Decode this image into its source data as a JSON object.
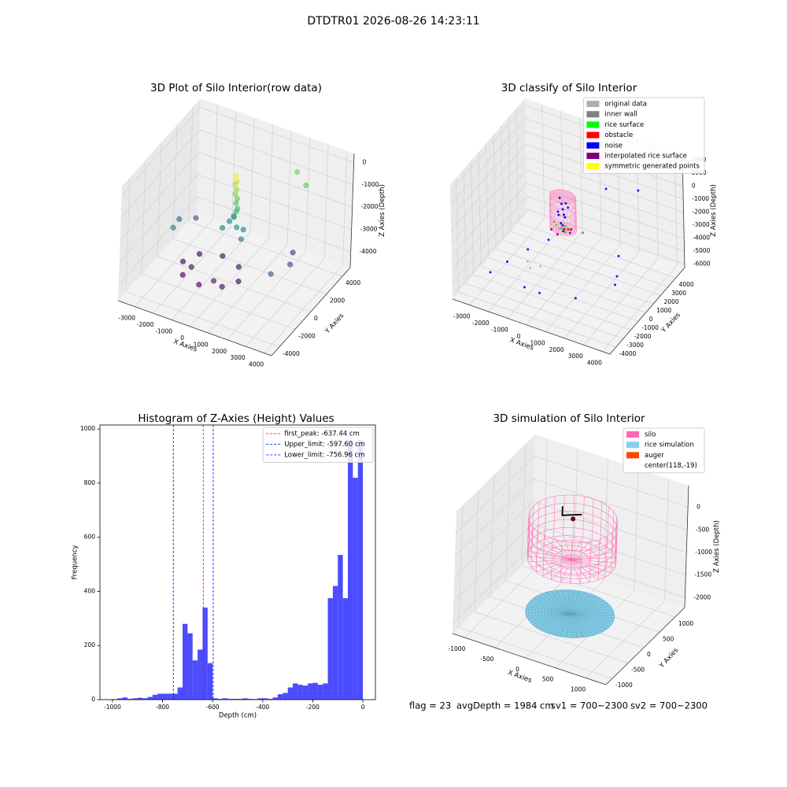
{
  "title": "DTDTR01 2026-08-26 14:23:11",
  "status": [
    "flag = 23",
    "avgDepth = 1984 cm",
    "sv1 = 700~2300",
    "sv2 = 700~2300"
  ],
  "chart_data": [
    {
      "type": "scatter3d",
      "title": "3D Plot of Silo Interior(row data)",
      "xlabel": "X Axies",
      "ylabel": "Y Axies",
      "zlabel": "Z Axies (Depth)",
      "xlim": [
        -3900,
        4400
      ],
      "ylim": [
        -5000,
        5000
      ],
      "zlim": [
        -4700,
        400
      ],
      "xticks": [
        -3000,
        -2000,
        -1000,
        0,
        1000,
        2000,
        3000,
        4000
      ],
      "yticks": [
        -4000,
        -2000,
        0,
        2000,
        4000
      ],
      "zticks": [
        -4000,
        -3000,
        -2000,
        -1000,
        0
      ],
      "series": [
        {
          "colormap": "viridis",
          "x": [
            150,
            250,
            100,
            200,
            150,
            250,
            200,
            300,
            200,
            100,
            0,
            400,
            -200,
            600,
            -400,
            700,
            -2500,
            -2800,
            -2400,
            2800,
            3000,
            2600,
            2500,
            1800,
            -2200,
            -1760,
            -700,
            360,
            800,
            360,
            -700,
            -1760,
            -1500,
            0
          ],
          "y": [
            0,
            -50,
            50,
            20,
            -30,
            40,
            0,
            -20,
            60,
            0,
            300,
            -300,
            200,
            100,
            -200,
            -400,
            -1500,
            0,
            1200,
            -1500,
            500,
            1800,
            3500,
            4000,
            -800,
            -1860,
            -2300,
            -1860,
            -800,
            260,
            700,
            260,
            -1400,
            -2100
          ],
          "z": [
            100,
            -100,
            -300,
            -500,
            -700,
            -900,
            -1100,
            -1300,
            -1500,
            -1700,
            -1900,
            -2000,
            -2100,
            -2200,
            -2300,
            -2400,
            -2400,
            -2700,
            -3000,
            -2900,
            -3200,
            -3300,
            -1000,
            -800,
            -4100,
            -4150,
            -4100,
            -4050,
            -4100,
            -4000,
            -4000,
            -4050,
            -3900,
            -3800
          ]
        }
      ]
    },
    {
      "type": "scatter3d",
      "title": "3D classify of Silo Interior",
      "xlabel": "X Axies",
      "ylabel": "Y Axies",
      "zlabel": "Z Axies (Depth)",
      "xlim": [
        -3900,
        4400
      ],
      "ylim": [
        -4800,
        5200
      ],
      "zlim": [
        -6260,
        2530
      ],
      "xticks": [
        -3000,
        -2000,
        -1000,
        0,
        1000,
        2000,
        3000,
        4000
      ],
      "yticks": [
        -4000,
        -3000,
        -2000,
        -1000,
        0,
        1000,
        2000,
        3000,
        4000
      ],
      "zticks": [
        -6000,
        -5000,
        -4000,
        -3000,
        -2000,
        -1000,
        0,
        1000,
        2000
      ],
      "cylinder": {
        "center": [
          118,
          -19
        ],
        "radius": 650,
        "top": 500,
        "bottom": -2000,
        "color": "#ff69b4"
      },
      "legend": "upper right",
      "series": [
        {
          "name": "original data",
          "color": "#b0b0b0",
          "x": [
            -1500,
            -1200,
            -900
          ],
          "y": [
            -800,
            -1200,
            -600
          ],
          "z": [
            -4800,
            -4900,
            -5000
          ]
        },
        {
          "name": "inner wall",
          "color": "#808080",
          "x": [
            900,
            -700
          ],
          "y": [
            600,
            800
          ],
          "z": [
            -2300,
            -2400
          ]
        },
        {
          "name": "rice surface",
          "color": "#00ff00",
          "x": [
            0,
            300,
            -300,
            100
          ],
          "y": [
            0,
            -200,
            100,
            300
          ],
          "z": [
            -2000,
            -2050,
            -1950,
            -2000
          ]
        },
        {
          "name": "obstacle",
          "color": "#ff0000",
          "x": [
            200,
            350
          ],
          "y": [
            -100,
            50
          ],
          "z": [
            -1900,
            -1950
          ]
        },
        {
          "name": "noise",
          "color": "#0000ff",
          "x": [
            100,
            0,
            200,
            -100,
            150,
            50,
            250,
            -50,
            100,
            300,
            -200,
            -2500,
            -2000,
            -1000,
            1500,
            2500,
            2000,
            -1500,
            3000,
            1000,
            2500,
            -3000,
            0,
            -500
          ],
          "y": [
            0,
            100,
            -100,
            -50,
            150,
            -150,
            50,
            0,
            -50,
            200,
            100,
            -1000,
            500,
            -2500,
            -2000,
            1000,
            2500,
            2000,
            -500,
            3500,
            4000,
            -2000,
            -3000,
            1500
          ],
          "z": [
            -500,
            -200,
            -800,
            -1000,
            -1200,
            -1500,
            0,
            300,
            -1700,
            -400,
            -900,
            -5200,
            -5000,
            -5400,
            -5300,
            -5100,
            -4800,
            -5000,
            -4500,
            -800,
            -500,
            -5600,
            -5000,
            -3500
          ]
        },
        {
          "name": "interpolated rice surface",
          "color": "#800080",
          "x": [
            -400,
            400,
            0,
            500
          ],
          "y": [
            -300,
            300,
            -500,
            -100
          ],
          "z": [
            -2100,
            -2100,
            -2150,
            -2050
          ]
        },
        {
          "name": "symmetric generated points",
          "color": "#ffff00",
          "x": [],
          "y": [],
          "z": []
        }
      ]
    },
    {
      "type": "histogram",
      "title": "Histogram of Z-Axies (Height) Values",
      "xlabel": "Depth (cm)",
      "ylabel": "Frequency",
      "color": "#0000ff",
      "alpha": 0.7,
      "bins": [
        -1000,
        -980,
        -960,
        -940,
        -920,
        -900,
        -880,
        -860,
        -840,
        -820,
        -800,
        -780,
        -760,
        -740,
        -720,
        -700,
        -680,
        -660,
        -640,
        -620,
        -600,
        -580,
        -560,
        -540,
        -520,
        -500,
        -480,
        -460,
        -440,
        -420,
        -400,
        -380,
        -360,
        -340,
        -320,
        -300,
        -280,
        -260,
        -240,
        -220,
        -200,
        -180,
        -160,
        -140,
        -120,
        -100,
        -80,
        -60,
        -40,
        -20,
        0
      ],
      "values": [
        2,
        5,
        8,
        3,
        5,
        7,
        5,
        10,
        18,
        22,
        22,
        22,
        22,
        45,
        280,
        245,
        145,
        185,
        340,
        135,
        5,
        3,
        5,
        3,
        3,
        3,
        5,
        3,
        2,
        5,
        5,
        3,
        8,
        20,
        25,
        45,
        60,
        55,
        52,
        60,
        62,
        55,
        60,
        375,
        420,
        535,
        375,
        960,
        820,
        960
      ],
      "xlim": [
        -1050,
        50
      ],
      "ylim": [
        0,
        1015
      ],
      "xticks": [
        -1000,
        -800,
        -600,
        -400,
        -200,
        0
      ],
      "yticks": [
        0,
        200,
        400,
        600,
        800,
        1000
      ],
      "legend": "upper right",
      "vlines": [
        {
          "label": "first_peak: -637.44 cm",
          "value": -637.44,
          "color": "#ff0000"
        },
        {
          "label": "Upper_limit: -597.60 cm",
          "value": -597.6,
          "color": "#0000ff"
        },
        {
          "label": "Lower_limit: -756.96 cm",
          "value": -756.96,
          "color": "#0000ff"
        }
      ]
    },
    {
      "type": "surface3d",
      "title": "3D simulation of Silo Interior",
      "xlabel": "X Axies",
      "ylabel": "Y Axies",
      "zlabel": "Z Axies (Depth)",
      "xlim": [
        -1200,
        1330
      ],
      "ylim": [
        -1200,
        1300
      ],
      "zlim": [
        -2220,
        480
      ],
      "xticks": [
        -1000,
        -500,
        0,
        500,
        1000
      ],
      "yticks": [
        -1000,
        -500,
        0,
        500,
        1000
      ],
      "zticks": [
        -2000,
        -1500,
        -1000,
        -500,
        0
      ],
      "legend": "upper right",
      "series": [
        {
          "name": "silo",
          "color": "#ff69b4",
          "kind": "cylinder",
          "center": [
            118,
            -19
          ],
          "radius": 650,
          "top": 100,
          "bottom": -800
        },
        {
          "name": "rice simulation",
          "color": "#87ceeb",
          "kind": "disk",
          "center": [
            118,
            -19
          ],
          "radius": 650,
          "z": -2000
        },
        {
          "name": "auger",
          "color": "#ff4500",
          "line_color": "#000000",
          "kind": "line",
          "x": [
            -60,
            -60,
            260
          ],
          "y": [
            -19,
            -19,
            -19
          ],
          "z": [
            300,
            100,
            260
          ]
        },
        {
          "name": "center(118,-19)",
          "kind": "point",
          "point_color": "#6b0020",
          "x": 118,
          "y": -19,
          "z": 100
        }
      ]
    }
  ]
}
